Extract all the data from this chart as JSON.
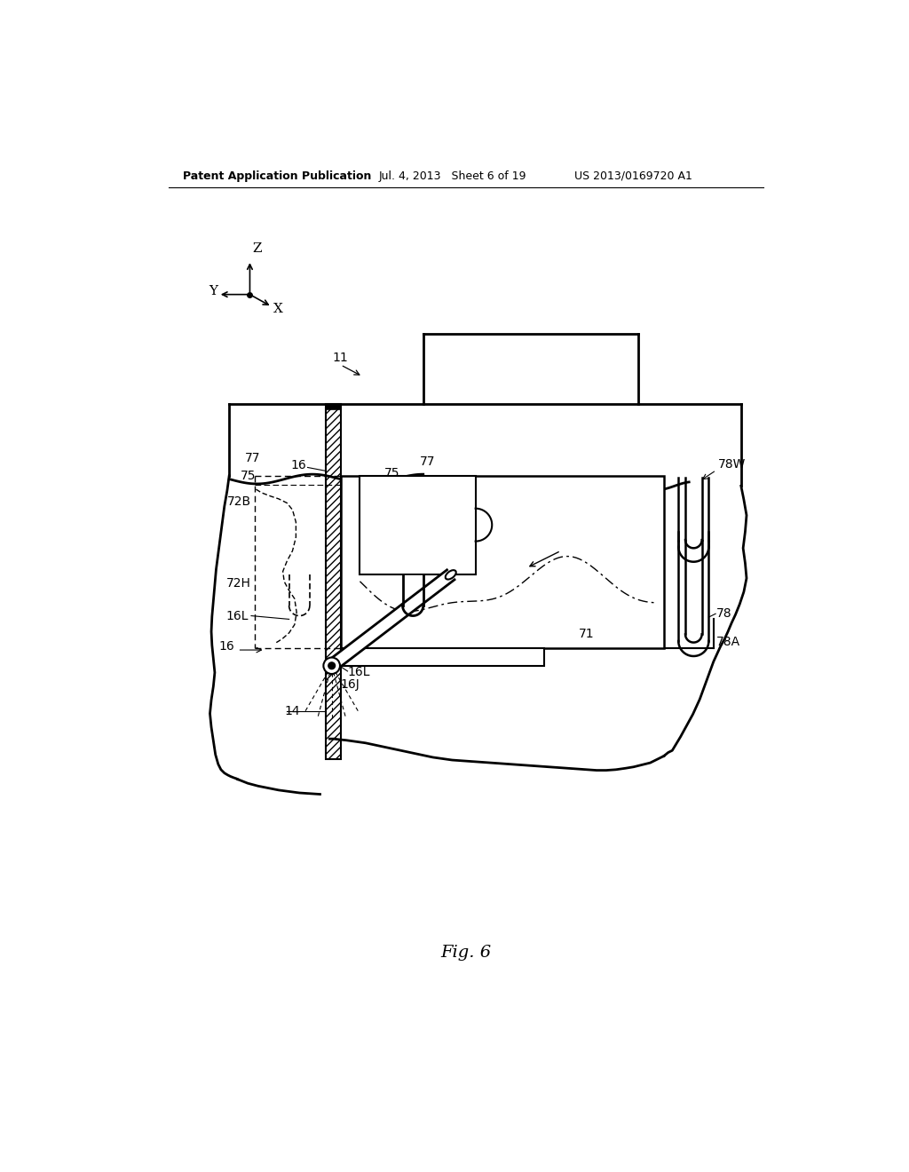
{
  "title_left": "Patent Application Publication",
  "title_mid": "Jul. 4, 2013   Sheet 6 of 19",
  "title_right": "US 2013/0169720 A1",
  "fig_label": "Fig. 6",
  "bg_color": "#ffffff",
  "line_color": "#000000"
}
